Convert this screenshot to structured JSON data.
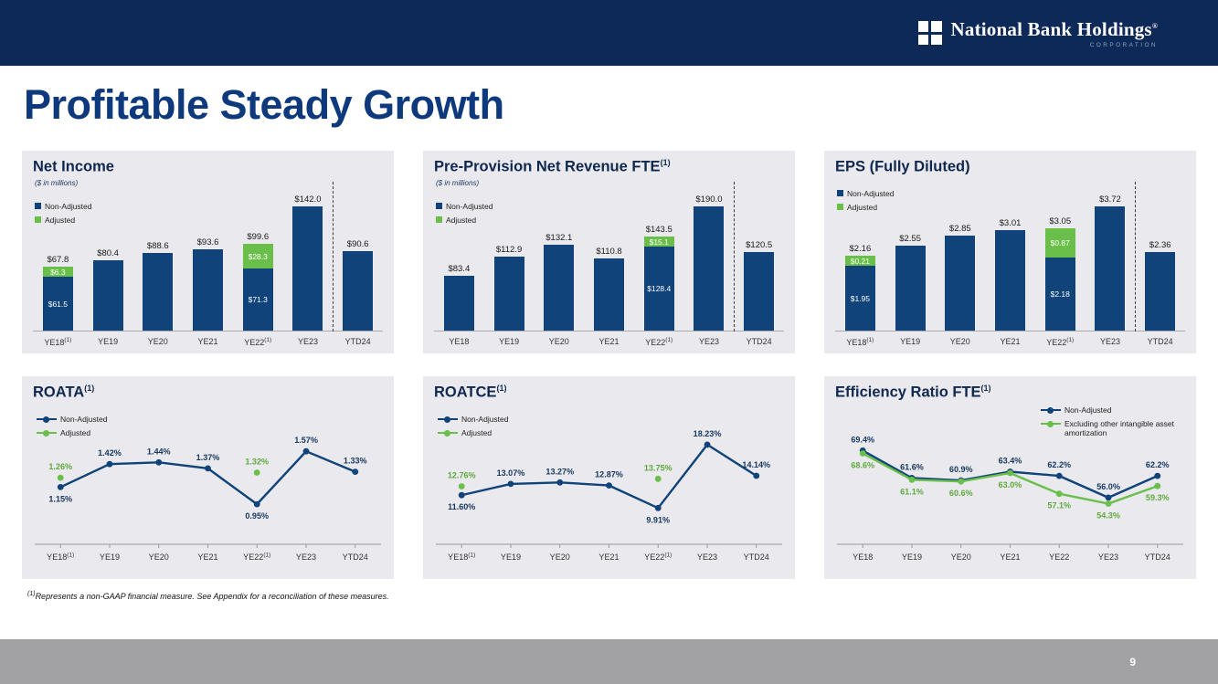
{
  "header": {
    "brand": "National Bank Holdings",
    "trademark": "®",
    "brand_sub": "CORPORATION"
  },
  "title": "Profitable Steady Growth",
  "footnote": {
    "sup": "(1)",
    "text": "Represents a non-GAAP financial measure.  See Appendix for a reconciliation of these measures."
  },
  "page_number": "9",
  "colors": {
    "navy": "#0f4379",
    "green": "#6abf4a",
    "navy_label": "#17375e",
    "green_label": "#5faa3c",
    "header_navy": "#0d2957",
    "panel_bg": "#e9e9ee",
    "footer_gray": "#a2a2a4"
  },
  "chart_data": [
    {
      "id": "net-income",
      "type": "bar",
      "title": "Net Income",
      "title_sup": "",
      "subtitle": "($ in millions)",
      "ymax": 155,
      "divider_before_index": 6,
      "legend": [
        {
          "label": "Non-Adjusted",
          "color": "#0f4379"
        },
        {
          "label": "Adjusted",
          "color": "#6abf4a"
        }
      ],
      "bars": [
        {
          "category": "YE18",
          "cat_sup": "(1)",
          "base": 61.5,
          "adjusted": 6.3,
          "total_label": "$67.8",
          "base_label": "$61.5",
          "adjusted_label": "$6.3"
        },
        {
          "category": "YE19",
          "base": 80.4,
          "total_label": "$80.4"
        },
        {
          "category": "YE20",
          "base": 88.6,
          "total_label": "$88.6"
        },
        {
          "category": "YE21",
          "base": 93.6,
          "total_label": "$93.6"
        },
        {
          "category": "YE22",
          "cat_sup": "(1)",
          "base": 71.3,
          "adjusted": 28.3,
          "total_label": "$99.6",
          "base_label": "$71.3",
          "adjusted_label": "$28.3"
        },
        {
          "category": "YE23",
          "base": 142.0,
          "total_label": "$142.0"
        },
        {
          "category": "YTD24",
          "base": 90.6,
          "total_label": "$90.6"
        }
      ]
    },
    {
      "id": "ppnr",
      "type": "bar",
      "title": "Pre-Provision Net Revenue FTE",
      "title_sup": "(1)",
      "subtitle": "($ in millions)",
      "ymax": 207,
      "divider_before_index": 6,
      "legend": [
        {
          "label": "Non-Adjusted",
          "color": "#0f4379"
        },
        {
          "label": "Adjusted",
          "color": "#6abf4a"
        }
      ],
      "bars": [
        {
          "category": "YE18",
          "base": 83.4,
          "total_label": "$83.4"
        },
        {
          "category": "YE19",
          "base": 112.9,
          "total_label": "$112.9"
        },
        {
          "category": "YE20",
          "base": 132.1,
          "total_label": "$132.1"
        },
        {
          "category": "YE21",
          "base": 110.8,
          "total_label": "$110.8"
        },
        {
          "category": "YE22",
          "cat_sup": "(1)",
          "base": 128.4,
          "adjusted": 15.1,
          "total_label": "$143.5",
          "base_label": "$128.4",
          "adjusted_label": "$15.1"
        },
        {
          "category": "YE23",
          "base": 190.0,
          "total_label": "$190.0"
        },
        {
          "category": "YTD24",
          "base": 120.5,
          "total_label": "$120.5"
        }
      ]
    },
    {
      "id": "eps",
      "type": "bar",
      "title": "EPS (Fully Diluted)",
      "title_sup": "",
      "subtitle": "",
      "ymax": 4.05,
      "divider_before_index": 6,
      "legend": [
        {
          "label": "Non-Adjusted",
          "color": "#0f4379"
        },
        {
          "label": "Adjusted",
          "color": "#6abf4a"
        }
      ],
      "bars": [
        {
          "category": "YE18",
          "cat_sup": "(1)",
          "base": 1.95,
          "adjusted": 0.21,
          "total_label": "$2.16",
          "base_label": "$1.95",
          "adjusted_label": "$0.21"
        },
        {
          "category": "YE19",
          "base": 2.55,
          "total_label": "$2.55"
        },
        {
          "category": "YE20",
          "base": 2.85,
          "total_label": "$2.85"
        },
        {
          "category": "YE21",
          "base": 3.01,
          "total_label": "$3.01"
        },
        {
          "category": "YE22",
          "cat_sup": "(1)",
          "base": 2.18,
          "adjusted": 0.87,
          "total_label": "$3.05",
          "base_label": "$2.18",
          "adjusted_label": "$0.87"
        },
        {
          "category": "YE23",
          "base": 3.72,
          "total_label": "$3.72"
        },
        {
          "category": "YTD24",
          "base": 2.36,
          "total_label": "$2.36"
        }
      ]
    },
    {
      "id": "roata",
      "type": "line",
      "title": "ROATA",
      "title_sup": "(1)",
      "legend_position": "left",
      "ymin": 0.78,
      "ymax": 1.85,
      "categories": [
        {
          "label": "YE18",
          "sup": "(1)"
        },
        {
          "label": "YE19"
        },
        {
          "label": "YE20"
        },
        {
          "label": "YE21"
        },
        {
          "label": "YE22",
          "sup": "(1)"
        },
        {
          "label": "YE23"
        },
        {
          "label": "YTD24"
        }
      ],
      "series": [
        {
          "name": "Non-Adjusted",
          "color": "#0f4379",
          "label_color": "#17375e",
          "line": true,
          "points": [
            {
              "v": 1.15,
              "label": "1.15%",
              "pos": "below"
            },
            {
              "v": 1.42,
              "label": "1.42%",
              "pos": "above"
            },
            {
              "v": 1.44,
              "label": "1.44%",
              "pos": "above"
            },
            {
              "v": 1.37,
              "label": "1.37%",
              "pos": "above"
            },
            {
              "v": 0.95,
              "label": "0.95%",
              "pos": "below"
            },
            {
              "v": 1.57,
              "label": "1.57%",
              "pos": "above"
            },
            {
              "v": 1.33,
              "label": "1.33%",
              "pos": "above"
            }
          ]
        },
        {
          "name": "Adjusted",
          "color": "#6abf4a",
          "label_color": "#5faa3c",
          "line": false,
          "points": [
            {
              "v": 1.26,
              "label": "1.26%",
              "pos": "above"
            },
            null,
            null,
            null,
            {
              "v": 1.32,
              "label": "1.32%",
              "pos": "above"
            },
            null,
            null
          ]
        }
      ]
    },
    {
      "id": "roatce",
      "type": "line",
      "title": "ROATCE",
      "title_sup": "(1)",
      "legend_position": "left",
      "ymin": 8.5,
      "ymax": 20.5,
      "categories": [
        {
          "label": "YE18",
          "sup": "(1)"
        },
        {
          "label": "YE19"
        },
        {
          "label": "YE20"
        },
        {
          "label": "YE21"
        },
        {
          "label": "YE22",
          "sup": "(1)"
        },
        {
          "label": "YE23"
        },
        {
          "label": "YTD24"
        }
      ],
      "series": [
        {
          "name": "Non-Adjusted",
          "color": "#0f4379",
          "label_color": "#17375e",
          "line": true,
          "points": [
            {
              "v": 11.6,
              "label": "11.60%",
              "pos": "below"
            },
            {
              "v": 13.07,
              "label": "13.07%",
              "pos": "above"
            },
            {
              "v": 13.27,
              "label": "13.27%",
              "pos": "above"
            },
            {
              "v": 12.87,
              "label": "12.87%",
              "pos": "above"
            },
            {
              "v": 9.91,
              "label": "9.91%",
              "pos": "below"
            },
            {
              "v": 18.23,
              "label": "18.23%",
              "pos": "above"
            },
            {
              "v": 14.14,
              "label": "14.14%",
              "pos": "above"
            }
          ]
        },
        {
          "name": "Adjusted",
          "color": "#6abf4a",
          "label_color": "#5faa3c",
          "line": false,
          "points": [
            {
              "v": 12.76,
              "label": "12.76%",
              "pos": "above"
            },
            null,
            null,
            null,
            {
              "v": 13.75,
              "label": "13.75%",
              "pos": "above"
            },
            null,
            null
          ]
        }
      ]
    },
    {
      "id": "efficiency",
      "type": "line",
      "title": "Efficiency Ratio FTE",
      "title_sup": "(1)",
      "legend_position": "right",
      "ymin": 50,
      "ymax": 76,
      "categories": [
        {
          "label": "YE18"
        },
        {
          "label": "YE19"
        },
        {
          "label": "YE20"
        },
        {
          "label": "YE21"
        },
        {
          "label": "YE22"
        },
        {
          "label": "YE23"
        },
        {
          "label": "YTD24"
        }
      ],
      "series": [
        {
          "name": "Non-Adjusted",
          "color": "#0f4379",
          "label_color": "#17375e",
          "line": true,
          "points": [
            {
              "v": 69.4,
              "label": "69.4%",
              "pos": "above"
            },
            {
              "v": 61.6,
              "label": "61.6%",
              "pos": "above"
            },
            {
              "v": 60.9,
              "label": "60.9%",
              "pos": "above"
            },
            {
              "v": 63.4,
              "label": "63.4%",
              "pos": "above"
            },
            {
              "v": 62.2,
              "label": "62.2%",
              "pos": "above"
            },
            {
              "v": 56.0,
              "label": "56.0%",
              "pos": "above"
            },
            {
              "v": 62.2,
              "label": "62.2%",
              "pos": "above"
            }
          ]
        },
        {
          "name": "Excluding other intangible asset amortization",
          "color": "#6abf4a",
          "label_color": "#5faa3c",
          "line": true,
          "points": [
            {
              "v": 68.6,
              "label": "68.6%",
              "pos": "below"
            },
            {
              "v": 61.1,
              "label": "61.1%",
              "pos": "below"
            },
            {
              "v": 60.6,
              "label": "60.6%",
              "pos": "below"
            },
            {
              "v": 63.0,
              "label": "63.0%",
              "pos": "below"
            },
            {
              "v": 57.1,
              "label": "57.1%",
              "pos": "below"
            },
            {
              "v": 54.3,
              "label": "54.3%",
              "pos": "below"
            },
            {
              "v": 59.3,
              "label": "59.3%",
              "pos": "below"
            }
          ]
        }
      ]
    }
  ]
}
